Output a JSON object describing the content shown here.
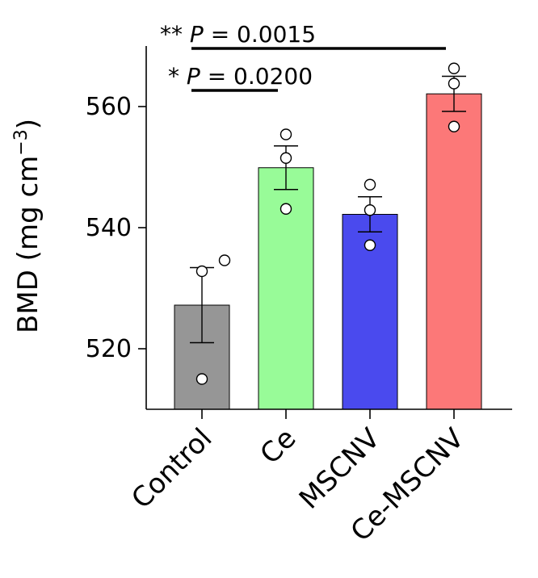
{
  "chart_data": {
    "type": "bar",
    "categories": [
      "Control",
      "Ce",
      "MSCNV",
      "Ce-MSCNV"
    ],
    "values": [
      527.2,
      549.9,
      542.2,
      562.1
    ],
    "errors": [
      6.2,
      3.6,
      2.9,
      2.9
    ],
    "points": [
      [
        532.8,
        534.6,
        515.0
      ],
      [
        555.4,
        551.5,
        543.1
      ],
      [
        547.1,
        542.9,
        537.1
      ],
      [
        566.3,
        563.8,
        556.7
      ]
    ],
    "colors": [
      "#969696",
      "#98fb98",
      "#4a4aee",
      "#fc7878"
    ],
    "ylabel": "BMD (mg cm",
    "ylabel_sup": "−3",
    "ylabel_close": ")",
    "ylim": [
      510,
      570
    ],
    "yticks": [
      520,
      540,
      560
    ],
    "ytick_labels": [
      "520",
      "540",
      "560"
    ],
    "grid": false,
    "significance": [
      {
        "from": 0,
        "to": 3,
        "stars": "**",
        "p_label": "P",
        "p_text": " = 0.0015"
      },
      {
        "from": 0,
        "to": 1,
        "stars": "*",
        "p_label": "P",
        "p_text": " = 0.0200"
      }
    ]
  }
}
